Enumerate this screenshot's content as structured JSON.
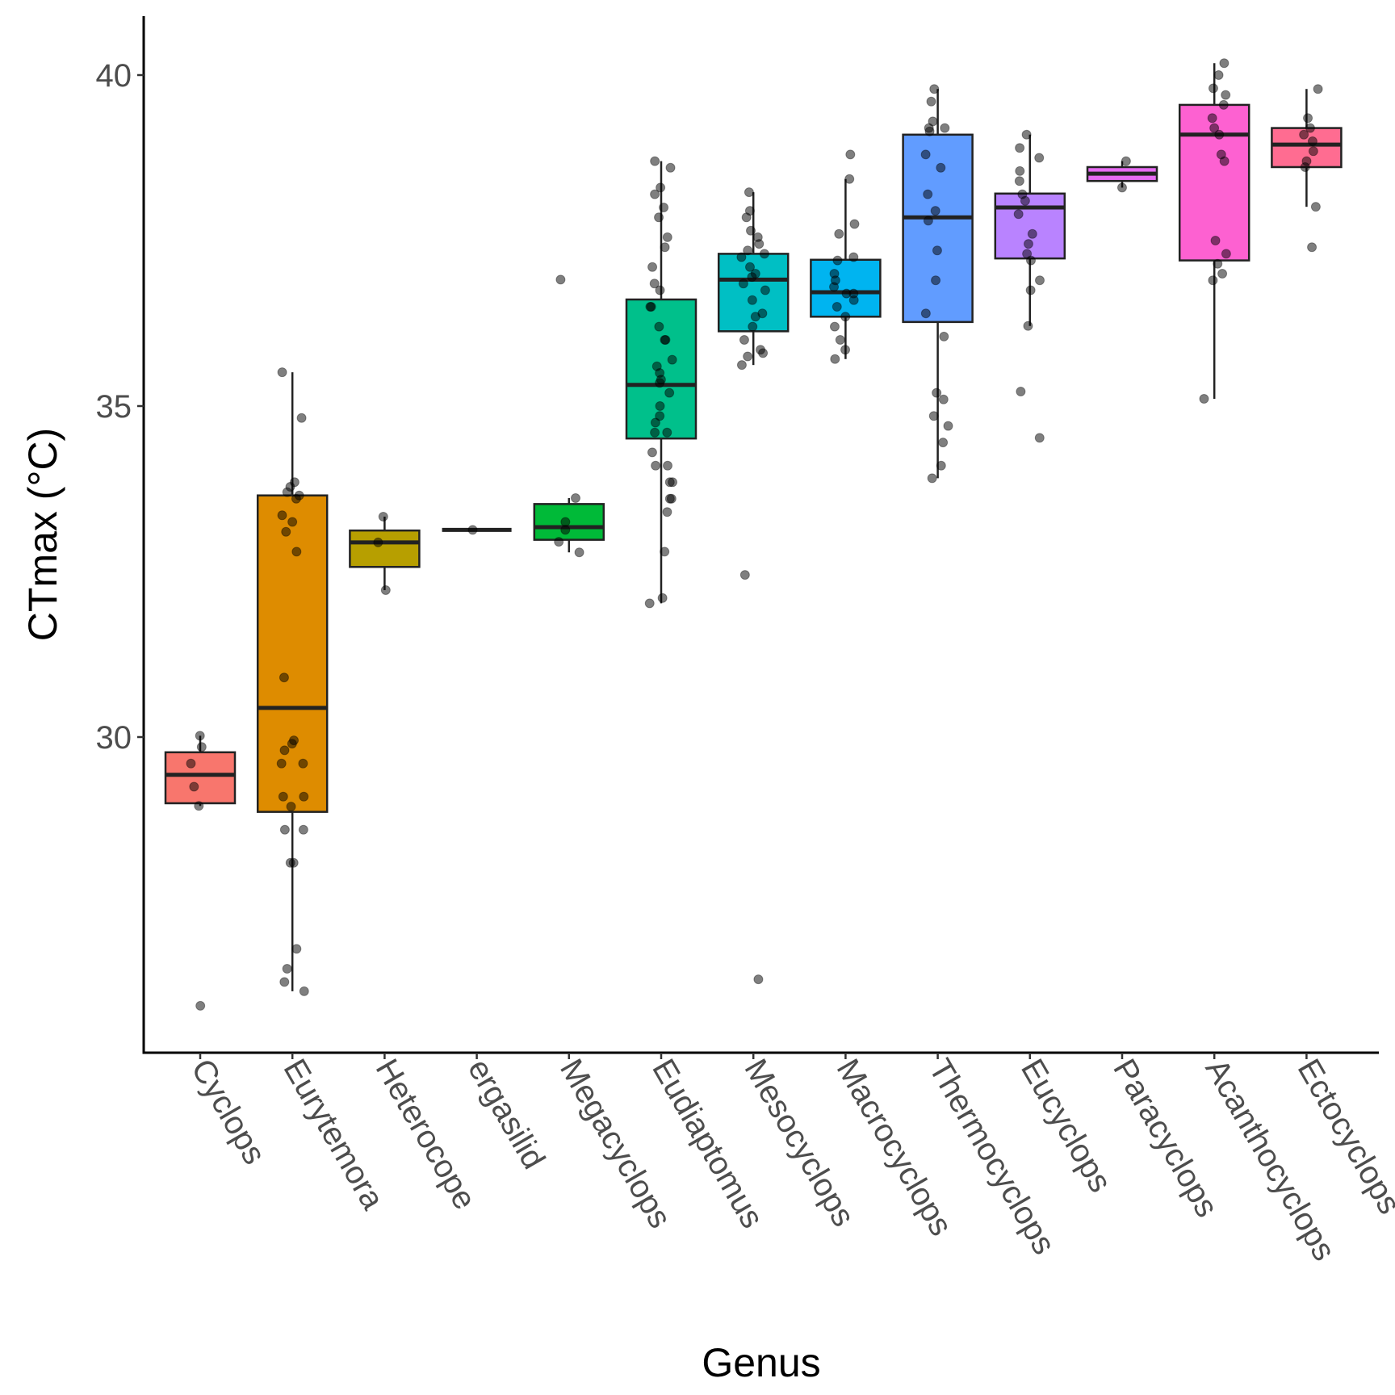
{
  "chart_data": {
    "type": "boxplot",
    "title": "",
    "xlabel": "Genus",
    "ylabel": "CTmax (°C)",
    "ylim": [
      25.25,
      40.9
    ],
    "yticks": [
      30,
      35,
      40
    ],
    "grid": false,
    "legend": "none",
    "categories": [
      "Cyclops",
      "Eurytemora",
      "Heterocope",
      "ergasilid",
      "Megacyclops",
      "Eudiaptomus",
      "Mesocyclops",
      "Macrocyclops",
      "Thermocyclops",
      "Eucyclops",
      "Paracyclops",
      "Acanthocyclops",
      "Ectocyclops"
    ],
    "series": [
      {
        "name": "Cyclops",
        "color": "#F8766D",
        "q1": 29.0,
        "median": 29.43,
        "q3": 29.77,
        "whisker_low": 28.96,
        "whisker_high": 30.02,
        "points": [
          30.02,
          29.85,
          29.6,
          29.25,
          28.96,
          25.94
        ]
      },
      {
        "name": "Eurytemora",
        "color": "#DE8C00",
        "q1": 28.87,
        "median": 30.44,
        "q3": 33.65,
        "whisker_low": 26.16,
        "whisker_high": 35.51,
        "points": [
          35.51,
          34.82,
          33.85,
          33.78,
          33.7,
          33.65,
          33.6,
          33.35,
          33.25,
          33.1,
          32.8,
          30.9,
          29.95,
          29.9,
          29.8,
          29.6,
          29.6,
          29.1,
          29.1,
          28.95,
          28.6,
          28.6,
          28.1,
          28.1,
          26.8,
          26.5,
          26.3,
          26.16
        ]
      },
      {
        "name": "Heterocope",
        "color": "#B79F00",
        "q1": 32.57,
        "median": 32.94,
        "q3": 33.12,
        "whisker_low": 32.22,
        "whisker_high": 33.33,
        "points": [
          33.33,
          32.94,
          32.22
        ]
      },
      {
        "name": "ergasilid",
        "color": "#7CAE00",
        "q1": 33.13,
        "median": 33.13,
        "q3": 33.13,
        "whisker_low": 33.13,
        "whisker_high": 33.13,
        "points": [
          33.13
        ]
      },
      {
        "name": "Megacyclops",
        "color": "#00BA38",
        "q1": 32.98,
        "median": 33.17,
        "q3": 33.52,
        "whisker_low": 32.79,
        "whisker_high": 33.61,
        "points": [
          36.91,
          33.61,
          33.25,
          33.13,
          32.95,
          32.79
        ]
      },
      {
        "name": "Eudiaptomus",
        "color": "#00C08B",
        "q1": 34.51,
        "median": 35.32,
        "q3": 36.61,
        "whisker_low": 32.02,
        "whisker_high": 38.7,
        "points": [
          38.7,
          38.6,
          38.3,
          38.2,
          38.0,
          37.85,
          37.55,
          37.4,
          37.1,
          36.85,
          36.75,
          36.5,
          36.5,
          36.2,
          36.0,
          36.0,
          35.7,
          35.6,
          35.5,
          35.4,
          35.35,
          35.2,
          35.0,
          34.85,
          34.75,
          34.6,
          34.6,
          34.3,
          34.1,
          34.1,
          33.85,
          33.85,
          33.6,
          33.6,
          33.4,
          32.8,
          32.1,
          32.02
        ]
      },
      {
        "name": "Mesocyclops",
        "color": "#00BFC4",
        "q1": 36.13,
        "median": 36.91,
        "q3": 37.3,
        "whisker_low": 35.62,
        "whisker_high": 38.23,
        "points": [
          38.23,
          37.95,
          37.85,
          37.65,
          37.55,
          37.45,
          37.35,
          37.3,
          37.25,
          37.1,
          37.0,
          36.95,
          36.85,
          36.75,
          36.6,
          36.4,
          36.35,
          36.2,
          36.0,
          35.85,
          35.8,
          35.75,
          35.62,
          32.45,
          26.34
        ]
      },
      {
        "name": "Macrocyclops",
        "color": "#00B4F0",
        "q1": 36.35,
        "median": 36.72,
        "q3": 37.21,
        "whisker_low": 35.71,
        "whisker_high": 38.43,
        "points": [
          38.8,
          38.43,
          37.75,
          37.6,
          37.25,
          37.2,
          37.0,
          36.9,
          36.8,
          36.7,
          36.7,
          36.6,
          36.5,
          36.35,
          36.2,
          36.0,
          35.85,
          35.71
        ]
      },
      {
        "name": "Thermocyclops",
        "color": "#619CFF",
        "q1": 36.27,
        "median": 37.85,
        "q3": 39.1,
        "whisker_low": 33.91,
        "whisker_high": 39.79,
        "points": [
          39.79,
          39.6,
          39.3,
          39.2,
          39.2,
          39.15,
          38.8,
          38.6,
          38.2,
          37.95,
          37.8,
          37.35,
          36.9,
          36.4,
          36.05,
          35.2,
          35.1,
          34.85,
          34.7,
          34.45,
          34.1,
          33.91
        ]
      },
      {
        "name": "Eucyclops",
        "color": "#B983FF",
        "q1": 37.23,
        "median": 38.0,
        "q3": 38.21,
        "whisker_low": 36.21,
        "whisker_high": 39.1,
        "points": [
          39.1,
          38.9,
          38.75,
          38.55,
          38.4,
          38.2,
          38.1,
          37.9,
          37.6,
          37.45,
          37.3,
          37.2,
          36.9,
          36.75,
          36.21,
          35.22,
          34.52
        ]
      },
      {
        "name": "Paracyclops",
        "color": "#E76BF3",
        "q1": 38.4,
        "median": 38.51,
        "q3": 38.61,
        "whisker_low": 38.3,
        "whisker_high": 38.7,
        "points": [
          38.7,
          38.3
        ]
      },
      {
        "name": "Acanthocyclops",
        "color": "#FD61D1",
        "q1": 37.2,
        "median": 39.1,
        "q3": 39.55,
        "whisker_low": 35.11,
        "whisker_high": 40.18,
        "points": [
          40.18,
          40.0,
          39.8,
          39.7,
          39.55,
          39.35,
          39.2,
          39.1,
          38.8,
          38.7,
          37.5,
          37.3,
          37.15,
          37.0,
          36.9,
          35.11
        ]
      },
      {
        "name": "Ectocyclops",
        "color": "#FF6C91",
        "q1": 38.61,
        "median": 38.95,
        "q3": 39.2,
        "whisker_low": 38.01,
        "whisker_high": 39.79,
        "points": [
          39.79,
          39.35,
          39.2,
          39.1,
          39.0,
          38.85,
          38.7,
          38.61,
          38.01,
          37.4
        ]
      }
    ]
  }
}
